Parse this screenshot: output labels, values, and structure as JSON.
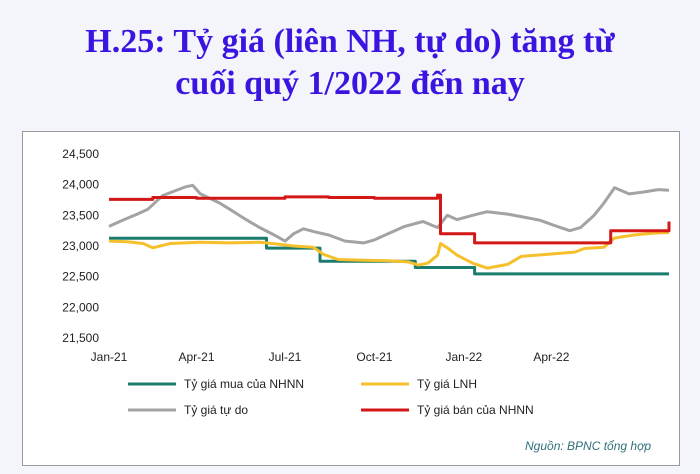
{
  "heading": {
    "line1": "H.25: Tỷ giá (liên NH, tự do) tăng từ",
    "line2": "cuối quý 1/2022 đến nay"
  },
  "source": "Nguồn: BPNC tổng hợp",
  "chart_data": {
    "type": "line",
    "x_type": "date",
    "x_range": [
      "2021-01-01",
      "2022-07-31"
    ],
    "ylim": [
      21500,
      24500
    ],
    "y_ticks": [
      21500,
      22000,
      22500,
      23000,
      23500,
      24000,
      24500
    ],
    "y_tick_labels": [
      "21,500",
      "22,000",
      "22,500",
      "23,000",
      "23,500",
      "24,000",
      "24,500"
    ],
    "x_ticks": [
      {
        "date": "2021-01-01",
        "label": "Jan-21"
      },
      {
        "date": "2021-04-01",
        "label": "Apr-21"
      },
      {
        "date": "2021-07-01",
        "label": "Jul-21"
      },
      {
        "date": "2021-10-01",
        "label": "Oct-21"
      },
      {
        "date": "2022-01-01",
        "label": "Jan-22"
      },
      {
        "date": "2022-04-01",
        "label": "Apr-22"
      }
    ],
    "grid": false,
    "legend_position": "bottom",
    "series": [
      {
        "name": "Tỷ giá mua của NHNN",
        "color": "#1b7c6e",
        "step": true,
        "points": [
          [
            "2021-01-01",
            23125
          ],
          [
            "2021-06-08",
            23125
          ],
          [
            "2021-06-12",
            22965
          ],
          [
            "2021-07-31",
            22965
          ],
          [
            "2021-08-06",
            22750
          ],
          [
            "2021-11-06",
            22750
          ],
          [
            "2021-11-12",
            22650
          ],
          [
            "2022-01-06",
            22650
          ],
          [
            "2022-01-12",
            22545
          ],
          [
            "2022-07-31",
            22545
          ]
        ]
      },
      {
        "name": "Tỷ giá LNH",
        "color": "#f5c02c",
        "step": false,
        "points": [
          [
            "2021-01-01",
            23080
          ],
          [
            "2021-01-20",
            23070
          ],
          [
            "2021-02-05",
            23040
          ],
          [
            "2021-02-15",
            22970
          ],
          [
            "2021-03-05",
            23040
          ],
          [
            "2021-04-05",
            23060
          ],
          [
            "2021-05-05",
            23050
          ],
          [
            "2021-06-05",
            23060
          ],
          [
            "2021-06-25",
            23030
          ],
          [
            "2021-07-10",
            23000
          ],
          [
            "2021-07-30",
            22980
          ],
          [
            "2021-08-10",
            22860
          ],
          [
            "2021-08-25",
            22780
          ],
          [
            "2021-09-15",
            22770
          ],
          [
            "2021-10-15",
            22760
          ],
          [
            "2021-11-05",
            22740
          ],
          [
            "2021-11-15",
            22690
          ],
          [
            "2021-11-25",
            22720
          ],
          [
            "2021-12-05",
            22850
          ],
          [
            "2021-12-08",
            23040
          ],
          [
            "2021-12-15",
            22970
          ],
          [
            "2021-12-25",
            22850
          ],
          [
            "2022-01-10",
            22720
          ],
          [
            "2022-01-25",
            22640
          ],
          [
            "2022-02-15",
            22700
          ],
          [
            "2022-03-01",
            22830
          ],
          [
            "2022-04-01",
            22870
          ],
          [
            "2022-04-25",
            22900
          ],
          [
            "2022-05-05",
            22960
          ],
          [
            "2022-05-25",
            22980
          ],
          [
            "2022-06-05",
            23130
          ],
          [
            "2022-06-25",
            23180
          ],
          [
            "2022-07-15",
            23210
          ],
          [
            "2022-07-31",
            23220
          ]
        ]
      },
      {
        "name": "Tỷ giá tự do",
        "color": "#a3a3a3",
        "step": false,
        "points": [
          [
            "2021-01-01",
            23320
          ],
          [
            "2021-01-15",
            23420
          ],
          [
            "2021-01-30",
            23520
          ],
          [
            "2021-02-10",
            23600
          ],
          [
            "2021-02-25",
            23820
          ],
          [
            "2021-03-05",
            23870
          ],
          [
            "2021-03-20",
            23960
          ],
          [
            "2021-03-28",
            23990
          ],
          [
            "2021-04-05",
            23850
          ],
          [
            "2021-04-25",
            23700
          ],
          [
            "2021-05-05",
            23600
          ],
          [
            "2021-05-20",
            23450
          ],
          [
            "2021-06-05",
            23300
          ],
          [
            "2021-06-20",
            23180
          ],
          [
            "2021-07-01",
            23080
          ],
          [
            "2021-07-10",
            23200
          ],
          [
            "2021-07-20",
            23280
          ],
          [
            "2021-08-01",
            23230
          ],
          [
            "2021-08-15",
            23180
          ],
          [
            "2021-09-01",
            23080
          ],
          [
            "2021-09-20",
            23050
          ],
          [
            "2021-10-01",
            23100
          ],
          [
            "2021-10-15",
            23200
          ],
          [
            "2021-11-01",
            23320
          ],
          [
            "2021-11-20",
            23400
          ],
          [
            "2021-12-05",
            23300
          ],
          [
            "2021-12-15",
            23500
          ],
          [
            "2021-12-25",
            23430
          ],
          [
            "2022-01-10",
            23500
          ],
          [
            "2022-01-25",
            23560
          ],
          [
            "2022-02-15",
            23520
          ],
          [
            "2022-03-01",
            23480
          ],
          [
            "2022-03-20",
            23420
          ],
          [
            "2022-04-05",
            23330
          ],
          [
            "2022-04-20",
            23250
          ],
          [
            "2022-05-01",
            23300
          ],
          [
            "2022-05-15",
            23500
          ],
          [
            "2022-05-25",
            23700
          ],
          [
            "2022-06-05",
            23950
          ],
          [
            "2022-06-20",
            23850
          ],
          [
            "2022-07-05",
            23880
          ],
          [
            "2022-07-20",
            23920
          ],
          [
            "2022-07-31",
            23910
          ]
        ]
      },
      {
        "name": "Tỷ giá bán của NHNN",
        "color": "#d31717",
        "step": true,
        "points": [
          [
            "2021-01-01",
            23760
          ],
          [
            "2021-02-15",
            23790
          ],
          [
            "2021-04-01",
            23780
          ],
          [
            "2021-06-01",
            23780
          ],
          [
            "2021-07-01",
            23800
          ],
          [
            "2021-08-15",
            23790
          ],
          [
            "2021-10-01",
            23780
          ],
          [
            "2021-11-20",
            23780
          ],
          [
            "2021-12-05",
            23830
          ],
          [
            "2021-12-08",
            23200
          ],
          [
            "2022-01-08",
            23200
          ],
          [
            "2022-01-12",
            23050
          ],
          [
            "2022-05-29",
            23050
          ],
          [
            "2022-06-01",
            23250
          ],
          [
            "2022-07-25",
            23250
          ],
          [
            "2022-07-31",
            23400
          ]
        ]
      }
    ]
  }
}
